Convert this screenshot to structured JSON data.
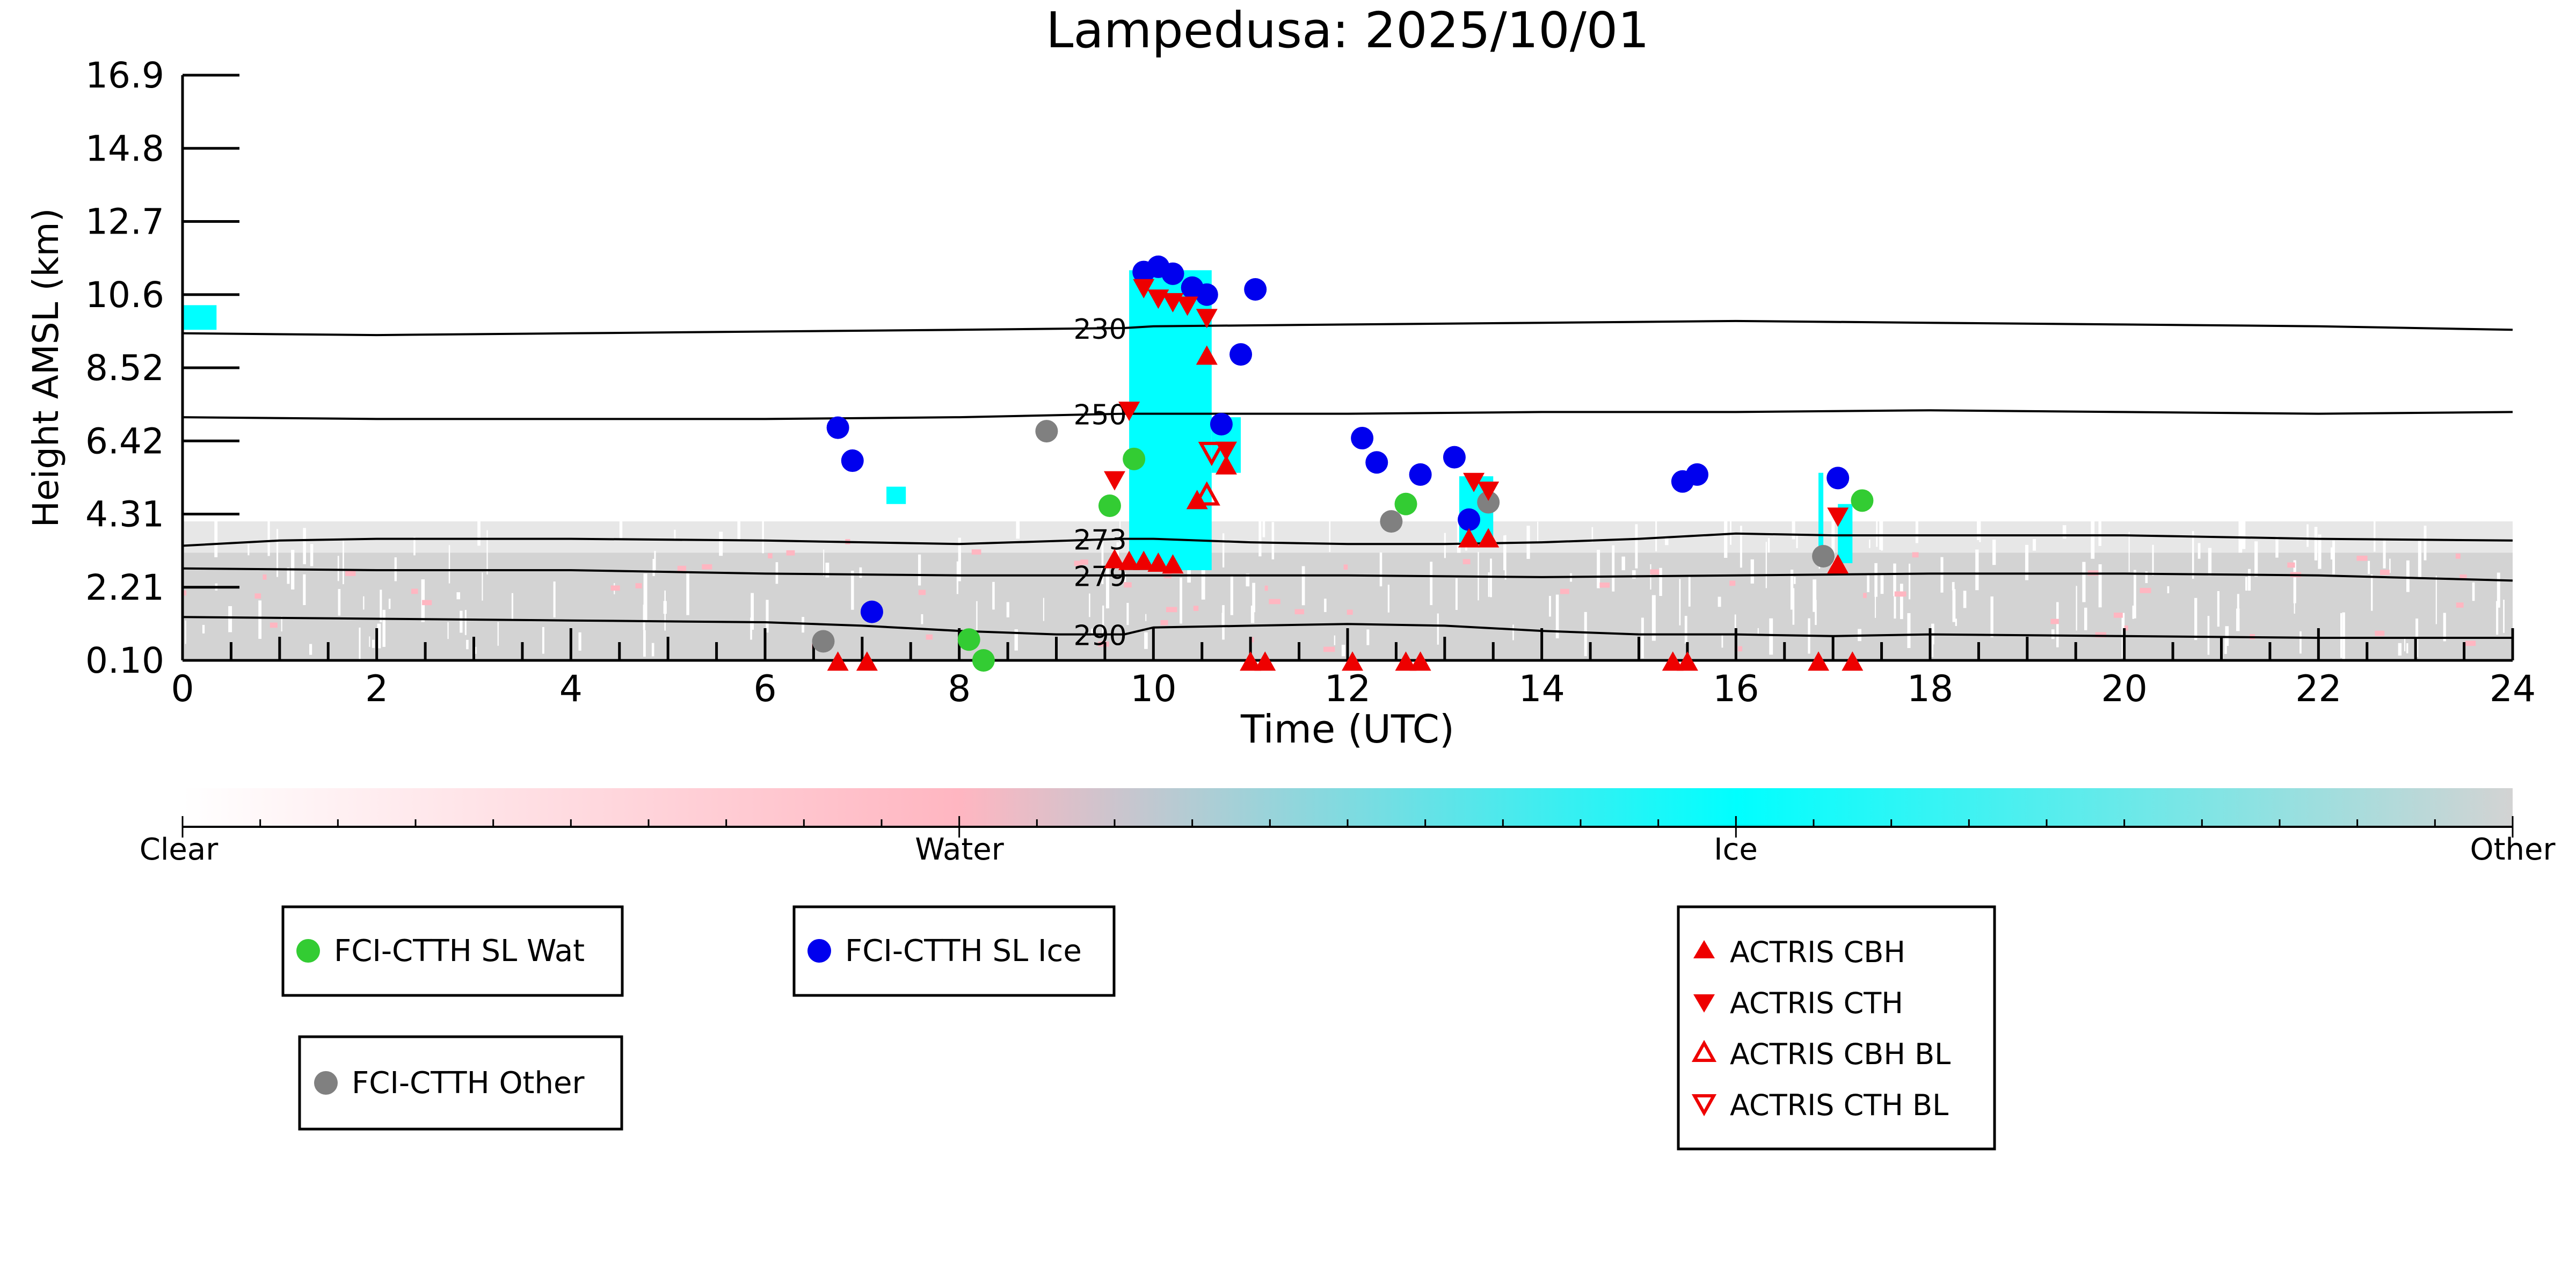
{
  "chart_data": {
    "type": "scatter",
    "title": "Lampedusa: 2025/10/01",
    "xlabel": "Time (UTC)",
    "ylabel": "Height AMSL (km)",
    "xlim": [
      0,
      24
    ],
    "ylim": [
      0.1,
      16.9
    ],
    "x_ticks": [
      "0",
      "2",
      "4",
      "6",
      "8",
      "10",
      "12",
      "14",
      "16",
      "18",
      "20",
      "22",
      "24"
    ],
    "y_ticks": [
      "0.10",
      "2.21",
      "4.31",
      "6.42",
      "8.52",
      "10.6",
      "12.7",
      "14.8",
      "16.9"
    ],
    "y_tick_values": [
      0.1,
      2.21,
      4.31,
      6.42,
      8.52,
      10.6,
      12.7,
      14.8,
      16.9
    ],
    "colorbar": {
      "labels": [
        "Clear",
        "Water",
        "Ice",
        "Other"
      ],
      "colors": [
        "#ffffff",
        "#ffb6c1",
        "#00ffff",
        "#d3d3d3"
      ]
    },
    "colors": {
      "wat": "#33cc33",
      "ice": "#0000ee",
      "other": "#808080",
      "actris": "#ee0000",
      "ice_cloud": "#00ffff",
      "other_cloud": "#d3d3d3",
      "water_cloud": "#ffb6c1"
    },
    "legends": {
      "fci1": {
        "wat": "FCI-CTTH SL Wat",
        "ice": "FCI-CTTH SL Ice"
      },
      "fci2": {
        "other": "FCI-CTTH Other"
      },
      "actris": {
        "cbh": "ACTRIS CBH",
        "cth": "ACTRIS CTH",
        "cbh_bl": "ACTRIS CBH BL",
        "cth_bl": "ACTRIS CTH BL"
      }
    },
    "isotherms": [
      {
        "label": "230",
        "label_x": 9.7,
        "points": [
          [
            0,
            9.5
          ],
          [
            2,
            9.45
          ],
          [
            4,
            9.5
          ],
          [
            6,
            9.55
          ],
          [
            8,
            9.6
          ],
          [
            9.7,
            9.65
          ],
          [
            10,
            9.7
          ],
          [
            12,
            9.75
          ],
          [
            14,
            9.8
          ],
          [
            16,
            9.85
          ],
          [
            18,
            9.8
          ],
          [
            20,
            9.75
          ],
          [
            22,
            9.7
          ],
          [
            24,
            9.6
          ]
        ]
      },
      {
        "label": "250",
        "label_x": 9.7,
        "points": [
          [
            0,
            7.1
          ],
          [
            2,
            7.05
          ],
          [
            4,
            7.05
          ],
          [
            6,
            7.05
          ],
          [
            8,
            7.1
          ],
          [
            9.7,
            7.2
          ],
          [
            10,
            7.2
          ],
          [
            12,
            7.2
          ],
          [
            14,
            7.25
          ],
          [
            16,
            7.25
          ],
          [
            18,
            7.3
          ],
          [
            20,
            7.25
          ],
          [
            22,
            7.2
          ],
          [
            24,
            7.25
          ]
        ]
      },
      {
        "label": "273",
        "label_x": 9.7,
        "points": [
          [
            0,
            3.4
          ],
          [
            1,
            3.55
          ],
          [
            2,
            3.6
          ],
          [
            4,
            3.6
          ],
          [
            6,
            3.55
          ],
          [
            8,
            3.45
          ],
          [
            9.7,
            3.6
          ],
          [
            10,
            3.6
          ],
          [
            11,
            3.5
          ],
          [
            12,
            3.45
          ],
          [
            13,
            3.45
          ],
          [
            14,
            3.5
          ],
          [
            15,
            3.6
          ],
          [
            16,
            3.75
          ],
          [
            17,
            3.7
          ],
          [
            18,
            3.7
          ],
          [
            20,
            3.7
          ],
          [
            22,
            3.6
          ],
          [
            24,
            3.55
          ]
        ]
      },
      {
        "label": "279",
        "label_x": 9.7,
        "points": [
          [
            0,
            2.75
          ],
          [
            2,
            2.7
          ],
          [
            4,
            2.7
          ],
          [
            6,
            2.6
          ],
          [
            8,
            2.55
          ],
          [
            9.7,
            2.55
          ],
          [
            10,
            2.55
          ],
          [
            12,
            2.55
          ],
          [
            14,
            2.5
          ],
          [
            16,
            2.55
          ],
          [
            18,
            2.6
          ],
          [
            20,
            2.6
          ],
          [
            22,
            2.55
          ],
          [
            24,
            2.4
          ]
        ]
      },
      {
        "label": "290",
        "label_x": 9.7,
        "points": [
          [
            0,
            1.35
          ],
          [
            2,
            1.3
          ],
          [
            4,
            1.25
          ],
          [
            6,
            1.2
          ],
          [
            7,
            1.1
          ],
          [
            8,
            0.95
          ],
          [
            9,
            0.85
          ],
          [
            9.7,
            0.85
          ],
          [
            10,
            1.05
          ],
          [
            11,
            1.1
          ],
          [
            12,
            1.15
          ],
          [
            13,
            1.1
          ],
          [
            14,
            0.95
          ],
          [
            15,
            0.85
          ],
          [
            16,
            0.85
          ],
          [
            17,
            0.8
          ],
          [
            18,
            0.85
          ],
          [
            20,
            0.8
          ],
          [
            22,
            0.75
          ],
          [
            24,
            0.75
          ]
        ]
      }
    ],
    "series": [
      {
        "name": "FCI-CTTH SL Wat",
        "points": [
          [
            8.1,
            0.7
          ],
          [
            8.25,
            0.1
          ],
          [
            9.55,
            4.55
          ],
          [
            9.8,
            5.9
          ],
          [
            12.6,
            4.6
          ],
          [
            17.3,
            4.7
          ]
        ]
      },
      {
        "name": "FCI-CTTH SL Ice",
        "points": [
          [
            6.75,
            6.8
          ],
          [
            6.9,
            5.85
          ],
          [
            7.1,
            1.5
          ],
          [
            9.9,
            11.25
          ],
          [
            10.05,
            11.4
          ],
          [
            10.2,
            11.2
          ],
          [
            10.4,
            10.8
          ],
          [
            10.55,
            10.6
          ],
          [
            10.7,
            6.9
          ],
          [
            10.9,
            8.9
          ],
          [
            11.05,
            10.75
          ],
          [
            12.15,
            6.5
          ],
          [
            12.3,
            5.8
          ],
          [
            12.75,
            5.45
          ],
          [
            13.1,
            5.95
          ],
          [
            13.25,
            4.15
          ],
          [
            15.45,
            5.25
          ],
          [
            15.6,
            5.45
          ],
          [
            17.05,
            5.35
          ]
        ]
      },
      {
        "name": "FCI-CTTH Other",
        "points": [
          [
            6.6,
            0.65
          ],
          [
            8.9,
            6.7
          ],
          [
            12.45,
            4.1
          ],
          [
            13.45,
            4.65
          ],
          [
            16.9,
            3.1
          ]
        ]
      },
      {
        "name": "ACTRIS CBH",
        "points": [
          [
            9.6,
            3.0
          ],
          [
            9.75,
            2.95
          ],
          [
            9.9,
            2.95
          ],
          [
            10.05,
            2.9
          ],
          [
            10.2,
            2.85
          ],
          [
            10.55,
            8.85
          ],
          [
            10.45,
            4.7
          ],
          [
            10.75,
            5.7
          ],
          [
            13.25,
            3.6
          ],
          [
            13.45,
            3.6
          ],
          [
            17.05,
            2.85
          ],
          [
            11.0,
            0.05
          ],
          [
            11.15,
            0.05
          ],
          [
            12.05,
            0.05
          ],
          [
            12.6,
            0.05
          ],
          [
            12.75,
            0.05
          ],
          [
            15.35,
            0.05
          ],
          [
            15.5,
            0.05
          ],
          [
            16.85,
            0.05
          ],
          [
            17.2,
            0.05
          ],
          [
            6.75,
            0.05
          ],
          [
            7.05,
            0.05
          ]
        ]
      },
      {
        "name": "ACTRIS CTH",
        "points": [
          [
            9.6,
            5.3
          ],
          [
            9.75,
            7.3
          ],
          [
            9.9,
            10.8
          ],
          [
            10.05,
            10.5
          ],
          [
            10.2,
            10.4
          ],
          [
            10.35,
            10.3
          ],
          [
            10.55,
            9.95
          ],
          [
            10.75,
            6.15
          ],
          [
            13.3,
            5.25
          ],
          [
            13.45,
            5.0
          ],
          [
            17.05,
            4.25
          ]
        ]
      },
      {
        "name": "ACTRIS CBH BL",
        "points": [
          [
            10.55,
            4.85
          ]
        ]
      },
      {
        "name": "ACTRIS CTH BL",
        "points": [
          [
            10.6,
            6.1
          ]
        ]
      }
    ]
  }
}
